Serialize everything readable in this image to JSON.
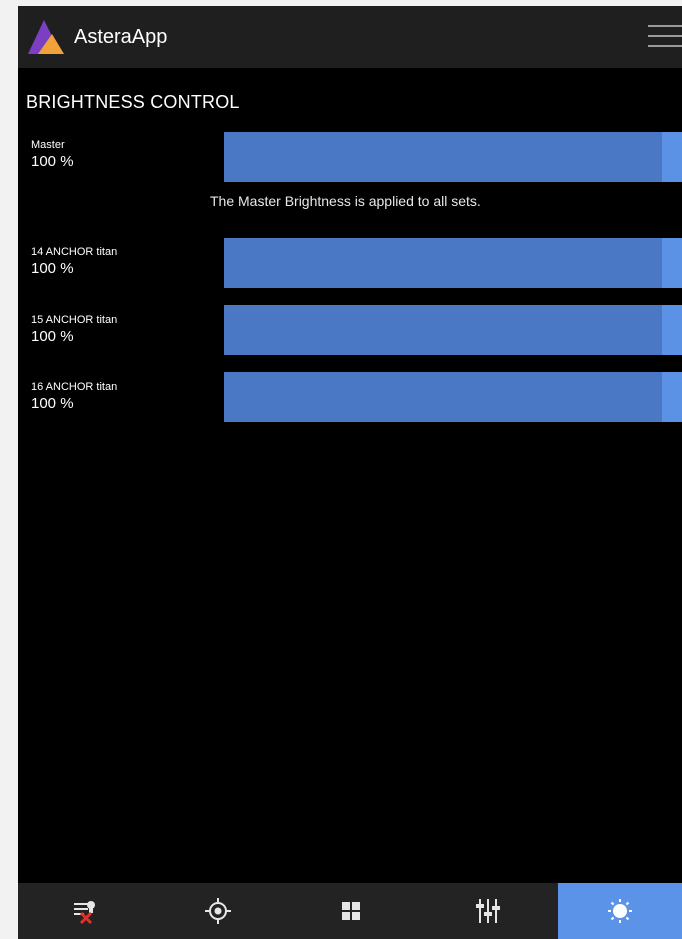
{
  "header": {
    "app_title": "AsteraApp",
    "logo_icon": "astera-triangle-logo",
    "menu_icon": "hamburger-menu-icon"
  },
  "brightness": {
    "section_title": "BRIGHTNESS CONTROL",
    "note": "The Master Brightness is applied to all sets.",
    "rows": [
      {
        "name": "Master",
        "value": "100 %",
        "level": 100
      },
      {
        "name": "14 ANCHOR titan",
        "value": "100 %",
        "level": 100
      },
      {
        "name": "15 ANCHOR titan",
        "value": "100 %",
        "level": 100
      },
      {
        "name": "16 ANCHOR titan",
        "value": "100 %",
        "level": 100
      }
    ]
  },
  "bottom_nav": {
    "items": [
      {
        "icon": "remove-device-icon",
        "active": false
      },
      {
        "icon": "target-crosshair-icon",
        "active": false
      },
      {
        "icon": "grid-icon",
        "active": false
      },
      {
        "icon": "sliders-icon",
        "active": false
      },
      {
        "icon": "brightness-sun-icon",
        "active": true
      }
    ]
  },
  "colors": {
    "accent": "#5b93e8",
    "slider_fill": "#4a78c4",
    "header_bg": "#1f1f1f",
    "background": "#000000",
    "remove_icon_red": "#e0302a"
  }
}
